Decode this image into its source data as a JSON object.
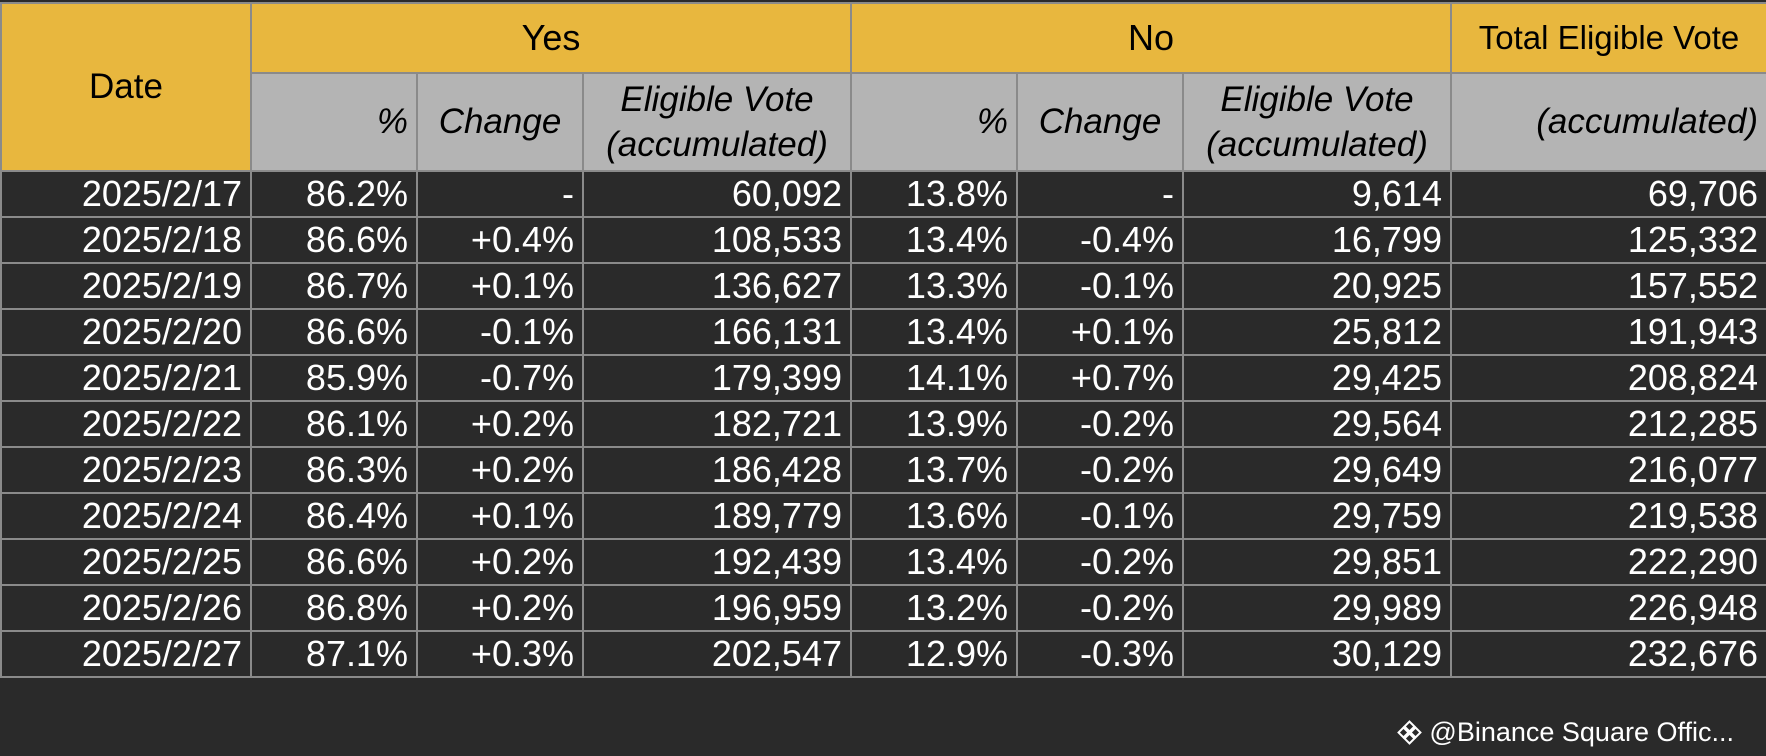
{
  "headers": {
    "date": "Date",
    "yes": "Yes",
    "no": "No",
    "total": "Total Eligible Vote",
    "yes_pct": "%",
    "yes_change": "Change",
    "yes_vote_l1": "Eligible Vote",
    "yes_vote_l2": "(accumulated)",
    "no_pct": "%",
    "no_change": "Change",
    "no_vote_l1": "Eligible Vote",
    "no_vote_l2": "(accumulated)",
    "total_sub": "(accumulated)"
  },
  "rows": [
    {
      "date": "2025/2/17",
      "yes_pct": "86.2%",
      "yes_change": "-",
      "yes_vote": "60,092",
      "no_pct": "13.8%",
      "no_change": "-",
      "no_vote": "9,614",
      "total": "69,706"
    },
    {
      "date": "2025/2/18",
      "yes_pct": "86.6%",
      "yes_change": "+0.4%",
      "yes_vote": "108,533",
      "no_pct": "13.4%",
      "no_change": "-0.4%",
      "no_vote": "16,799",
      "total": "125,332"
    },
    {
      "date": "2025/2/19",
      "yes_pct": "86.7%",
      "yes_change": "+0.1%",
      "yes_vote": "136,627",
      "no_pct": "13.3%",
      "no_change": "-0.1%",
      "no_vote": "20,925",
      "total": "157,552"
    },
    {
      "date": "2025/2/20",
      "yes_pct": "86.6%",
      "yes_change": "-0.1%",
      "yes_vote": "166,131",
      "no_pct": "13.4%",
      "no_change": "+0.1%",
      "no_vote": "25,812",
      "total": "191,943"
    },
    {
      "date": "2025/2/21",
      "yes_pct": "85.9%",
      "yes_change": "-0.7%",
      "yes_vote": "179,399",
      "no_pct": "14.1%",
      "no_change": "+0.7%",
      "no_vote": "29,425",
      "total": "208,824"
    },
    {
      "date": "2025/2/22",
      "yes_pct": "86.1%",
      "yes_change": "+0.2%",
      "yes_vote": "182,721",
      "no_pct": "13.9%",
      "no_change": "-0.2%",
      "no_vote": "29,564",
      "total": "212,285"
    },
    {
      "date": "2025/2/23",
      "yes_pct": "86.3%",
      "yes_change": "+0.2%",
      "yes_vote": "186,428",
      "no_pct": "13.7%",
      "no_change": "-0.2%",
      "no_vote": "29,649",
      "total": "216,077"
    },
    {
      "date": "2025/2/24",
      "yes_pct": "86.4%",
      "yes_change": "+0.1%",
      "yes_vote": "189,779",
      "no_pct": "13.6%",
      "no_change": "-0.1%",
      "no_vote": "29,759",
      "total": "219,538"
    },
    {
      "date": "2025/2/25",
      "yes_pct": "86.6%",
      "yes_change": "+0.2%",
      "yes_vote": "192,439",
      "no_pct": "13.4%",
      "no_change": "-0.2%",
      "no_vote": "29,851",
      "total": "222,290"
    },
    {
      "date": "2025/2/26",
      "yes_pct": "86.8%",
      "yes_change": "+0.2%",
      "yes_vote": "196,959",
      "no_pct": "13.2%",
      "no_change": "-0.2%",
      "no_vote": "29,989",
      "total": "226,948"
    },
    {
      "date": "2025/2/27",
      "yes_pct": "87.1%",
      "yes_change": "+0.3%",
      "yes_vote": "202,547",
      "no_pct": "12.9%",
      "no_change": "-0.3%",
      "no_vote": "30,129",
      "total": "232,676"
    }
  ],
  "footer": {
    "watermark": "@Binance Square Offic...",
    "icon": "binance-logo-icon"
  },
  "colors": {
    "header_gold": "#e8b73e",
    "header_gray": "#b4b4b4",
    "body_bg": "#2a2a2a",
    "grid": "#8a8a8a",
    "text_light": "#ffffff"
  }
}
